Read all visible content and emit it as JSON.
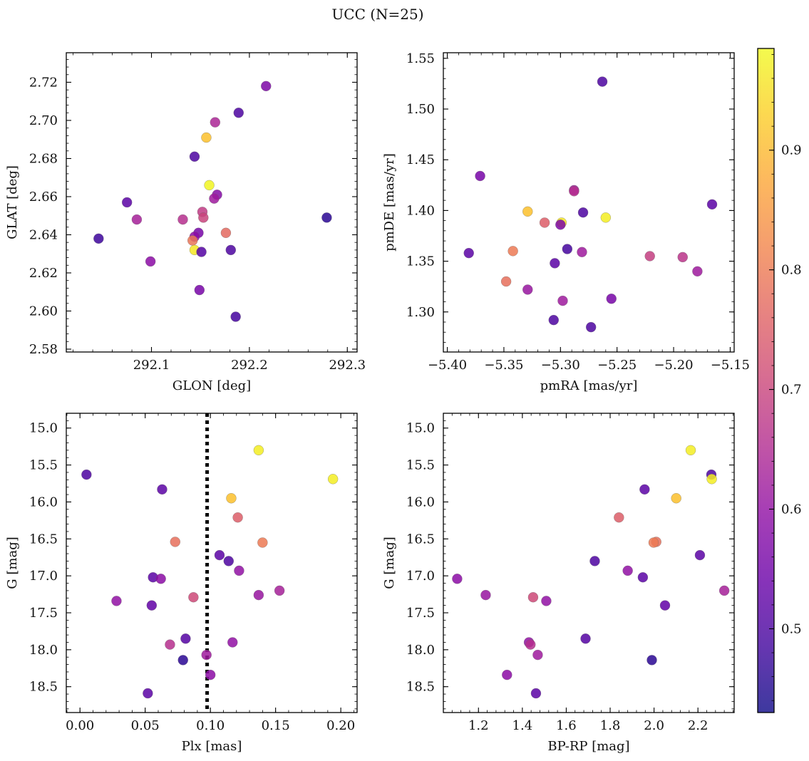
{
  "figure": {
    "title": "UCC (N=25)"
  },
  "colorbar": {
    "range": [
      0.43,
      0.985
    ],
    "ticks": [
      0.5,
      0.6,
      0.7,
      0.8,
      0.9
    ],
    "tick_labels": [
      "0.5",
      "0.6",
      "0.7",
      "0.8",
      "0.9"
    ],
    "colormap": "plasma"
  },
  "chart_data": [
    {
      "type": "scatter",
      "panel": "top-left",
      "xlabel": "GLON [deg]",
      "ylabel": "GLAT [deg]",
      "xlim": [
        292.013,
        292.31
      ],
      "ylim": [
        2.5785,
        2.7355
      ],
      "xticks": [
        292.1,
        292.2,
        292.3
      ],
      "xtick_labels": [
        "292.1",
        "292.2",
        "292.3"
      ],
      "yticks": [
        2.58,
        2.6,
        2.62,
        2.64,
        2.66,
        2.68,
        2.7,
        2.72
      ],
      "ytick_labels": [
        "2.58",
        "2.60",
        "2.62",
        "2.64",
        "2.66",
        "2.68",
        "2.70",
        "2.72"
      ],
      "points": [
        {
          "x": 292.217,
          "y": 2.718,
          "c": 0.57
        },
        {
          "x": 292.189,
          "y": 2.704,
          "c": 0.5
        },
        {
          "x": 292.165,
          "y": 2.699,
          "c": 0.64
        },
        {
          "x": 292.156,
          "y": 2.691,
          "c": 0.91
        },
        {
          "x": 292.144,
          "y": 2.681,
          "c": 0.5
        },
        {
          "x": 292.159,
          "y": 2.666,
          "c": 0.98
        },
        {
          "x": 292.167,
          "y": 2.661,
          "c": 0.58
        },
        {
          "x": 292.164,
          "y": 2.659,
          "c": 0.62
        },
        {
          "x": 292.075,
          "y": 2.657,
          "c": 0.52
        },
        {
          "x": 292.152,
          "y": 2.652,
          "c": 0.68
        },
        {
          "x": 292.153,
          "y": 2.649,
          "c": 0.7
        },
        {
          "x": 292.279,
          "y": 2.649,
          "c": 0.46
        },
        {
          "x": 292.085,
          "y": 2.648,
          "c": 0.63
        },
        {
          "x": 292.132,
          "y": 2.648,
          "c": 0.66
        },
        {
          "x": 292.176,
          "y": 2.641,
          "c": 0.77
        },
        {
          "x": 292.148,
          "y": 2.641,
          "c": 0.56
        },
        {
          "x": 292.144,
          "y": 2.639,
          "c": 0.59
        },
        {
          "x": 292.046,
          "y": 2.638,
          "c": 0.48
        },
        {
          "x": 292.142,
          "y": 2.637,
          "c": 0.79
        },
        {
          "x": 292.144,
          "y": 2.632,
          "c": 0.96
        },
        {
          "x": 292.151,
          "y": 2.631,
          "c": 0.51
        },
        {
          "x": 292.181,
          "y": 2.632,
          "c": 0.5
        },
        {
          "x": 292.099,
          "y": 2.626,
          "c": 0.59
        },
        {
          "x": 292.149,
          "y": 2.611,
          "c": 0.56
        },
        {
          "x": 292.186,
          "y": 2.597,
          "c": 0.49
        }
      ]
    },
    {
      "type": "scatter",
      "panel": "top-right",
      "xlabel": "pmRA [mas/yr]",
      "ylabel": "pmDE [mas/yr]",
      "xlim": [
        -5.4035,
        -5.1465
      ],
      "ylim": [
        1.2605,
        1.5555
      ],
      "xticks": [
        -5.4,
        -5.35,
        -5.3,
        -5.25,
        -5.2,
        -5.15
      ],
      "xtick_labels": [
        "−5.40",
        "−5.35",
        "−5.30",
        "−5.25",
        "−5.20",
        "−5.15"
      ],
      "yticks": [
        1.3,
        1.35,
        1.4,
        1.45,
        1.5,
        1.55
      ],
      "ytick_labels": [
        "1.30",
        "1.35",
        "1.40",
        "1.45",
        "1.50",
        "1.55"
      ],
      "points": [
        {
          "x": -5.263,
          "y": 1.527,
          "c": 0.5
        },
        {
          "x": -5.371,
          "y": 1.434,
          "c": 0.56
        },
        {
          "x": -5.166,
          "y": 1.406,
          "c": 0.52
        },
        {
          "x": -5.288,
          "y": 1.42,
          "c": 0.62
        },
        {
          "x": -5.288,
          "y": 1.419,
          "c": 0.66
        },
        {
          "x": -5.329,
          "y": 1.399,
          "c": 0.91
        },
        {
          "x": -5.28,
          "y": 1.398,
          "c": 0.5
        },
        {
          "x": -5.26,
          "y": 1.393,
          "c": 0.97
        },
        {
          "x": -5.314,
          "y": 1.388,
          "c": 0.75
        },
        {
          "x": -5.299,
          "y": 1.388,
          "c": 0.96
        },
        {
          "x": -5.3,
          "y": 1.386,
          "c": 0.57
        },
        {
          "x": -5.294,
          "y": 1.362,
          "c": 0.49
        },
        {
          "x": -5.381,
          "y": 1.358,
          "c": 0.52
        },
        {
          "x": -5.342,
          "y": 1.36,
          "c": 0.8
        },
        {
          "x": -5.281,
          "y": 1.359,
          "c": 0.62
        },
        {
          "x": -5.221,
          "y": 1.355,
          "c": 0.69
        },
        {
          "x": -5.192,
          "y": 1.354,
          "c": 0.67
        },
        {
          "x": -5.305,
          "y": 1.348,
          "c": 0.52
        },
        {
          "x": -5.179,
          "y": 1.34,
          "c": 0.62
        },
        {
          "x": -5.348,
          "y": 1.33,
          "c": 0.78
        },
        {
          "x": -5.329,
          "y": 1.322,
          "c": 0.61
        },
        {
          "x": -5.255,
          "y": 1.313,
          "c": 0.56
        },
        {
          "x": -5.298,
          "y": 1.311,
          "c": 0.62
        },
        {
          "x": -5.306,
          "y": 1.292,
          "c": 0.5
        },
        {
          "x": -5.273,
          "y": 1.285,
          "c": 0.5
        }
      ]
    },
    {
      "type": "scatter",
      "panel": "bottom-left",
      "xlabel": "Plx [mas]",
      "ylabel": "G [mag]",
      "xlim": [
        -0.0105,
        0.2125
      ],
      "ylim": [
        18.85,
        14.8
      ],
      "xticks": [
        0.0,
        0.05,
        0.1,
        0.15,
        0.2
      ],
      "xtick_labels": [
        "0.00",
        "0.05",
        "0.10",
        "0.15",
        "0.20"
      ],
      "yticks": [
        15.0,
        15.5,
        16.0,
        16.5,
        17.0,
        17.5,
        18.0,
        18.5
      ],
      "ytick_labels": [
        "15.0",
        "15.5",
        "16.0",
        "16.5",
        "17.0",
        "17.5",
        "18.0",
        "18.5"
      ],
      "vline": {
        "x": 0.0975,
        "style": "dotted",
        "color": "#000000"
      },
      "points": [
        {
          "x": 0.137,
          "y": 15.3,
          "c": 0.97
        },
        {
          "x": 0.005,
          "y": 15.63,
          "c": 0.5
        },
        {
          "x": 0.194,
          "y": 15.69,
          "c": 0.97
        },
        {
          "x": 0.063,
          "y": 15.83,
          "c": 0.52
        },
        {
          "x": 0.116,
          "y": 15.95,
          "c": 0.91
        },
        {
          "x": 0.121,
          "y": 16.21,
          "c": 0.75
        },
        {
          "x": 0.073,
          "y": 16.54,
          "c": 0.78
        },
        {
          "x": 0.14,
          "y": 16.55,
          "c": 0.8
        },
        {
          "x": 0.107,
          "y": 16.72,
          "c": 0.52
        },
        {
          "x": 0.114,
          "y": 16.8,
          "c": 0.5
        },
        {
          "x": 0.122,
          "y": 16.93,
          "c": 0.6
        },
        {
          "x": 0.056,
          "y": 17.02,
          "c": 0.52
        },
        {
          "x": 0.062,
          "y": 17.04,
          "c": 0.59
        },
        {
          "x": 0.153,
          "y": 17.2,
          "c": 0.63
        },
        {
          "x": 0.137,
          "y": 17.26,
          "c": 0.61
        },
        {
          "x": 0.087,
          "y": 17.29,
          "c": 0.71
        },
        {
          "x": 0.028,
          "y": 17.34,
          "c": 0.6
        },
        {
          "x": 0.055,
          "y": 17.4,
          "c": 0.53
        },
        {
          "x": 0.081,
          "y": 17.85,
          "c": 0.51
        },
        {
          "x": 0.117,
          "y": 17.9,
          "c": 0.6
        },
        {
          "x": 0.069,
          "y": 17.93,
          "c": 0.66
        },
        {
          "x": 0.097,
          "y": 18.07,
          "c": 0.62
        },
        {
          "x": 0.079,
          "y": 18.14,
          "c": 0.46
        },
        {
          "x": 0.1,
          "y": 18.34,
          "c": 0.59
        },
        {
          "x": 0.052,
          "y": 18.59,
          "c": 0.52
        }
      ]
    },
    {
      "type": "scatter",
      "panel": "bottom-right",
      "xlabel": "BP-RP [mag]",
      "ylabel": "G [mag]",
      "xlim": [
        1.04,
        2.365
      ],
      "ylim": [
        18.85,
        14.8
      ],
      "xticks": [
        1.2,
        1.4,
        1.6,
        1.8,
        2.0,
        2.2
      ],
      "xtick_labels": [
        "1.2",
        "1.4",
        "1.6",
        "1.8",
        "2.0",
        "2.2"
      ],
      "yticks": [
        15.0,
        15.5,
        16.0,
        16.5,
        17.0,
        17.5,
        18.0,
        18.5
      ],
      "ytick_labels": [
        "15.0",
        "15.5",
        "16.0",
        "16.5",
        "17.0",
        "17.5",
        "18.0",
        "18.5"
      ],
      "points": [
        {
          "x": 2.167,
          "y": 15.3,
          "c": 0.97
        },
        {
          "x": 2.261,
          "y": 15.63,
          "c": 0.5
        },
        {
          "x": 2.263,
          "y": 15.69,
          "c": 0.97
        },
        {
          "x": 1.957,
          "y": 15.83,
          "c": 0.52
        },
        {
          "x": 2.101,
          "y": 15.95,
          "c": 0.91
        },
        {
          "x": 1.84,
          "y": 16.21,
          "c": 0.75
        },
        {
          "x": 2.01,
          "y": 16.54,
          "c": 0.78
        },
        {
          "x": 1.998,
          "y": 16.55,
          "c": 0.8
        },
        {
          "x": 2.209,
          "y": 16.72,
          "c": 0.52
        },
        {
          "x": 1.73,
          "y": 16.8,
          "c": 0.5
        },
        {
          "x": 1.88,
          "y": 16.93,
          "c": 0.6
        },
        {
          "x": 1.949,
          "y": 17.02,
          "c": 0.52
        },
        {
          "x": 1.103,
          "y": 17.04,
          "c": 0.59
        },
        {
          "x": 2.32,
          "y": 17.2,
          "c": 0.63
        },
        {
          "x": 1.233,
          "y": 17.26,
          "c": 0.61
        },
        {
          "x": 1.449,
          "y": 17.29,
          "c": 0.71
        },
        {
          "x": 1.509,
          "y": 17.34,
          "c": 0.6
        },
        {
          "x": 2.05,
          "y": 17.4,
          "c": 0.53
        },
        {
          "x": 1.688,
          "y": 17.85,
          "c": 0.51
        },
        {
          "x": 1.43,
          "y": 17.9,
          "c": 0.6
        },
        {
          "x": 1.437,
          "y": 17.93,
          "c": 0.66
        },
        {
          "x": 1.47,
          "y": 18.07,
          "c": 0.62
        },
        {
          "x": 1.99,
          "y": 18.14,
          "c": 0.46
        },
        {
          "x": 1.33,
          "y": 18.34,
          "c": 0.59
        },
        {
          "x": 1.462,
          "y": 18.59,
          "c": 0.52
        }
      ]
    }
  ]
}
